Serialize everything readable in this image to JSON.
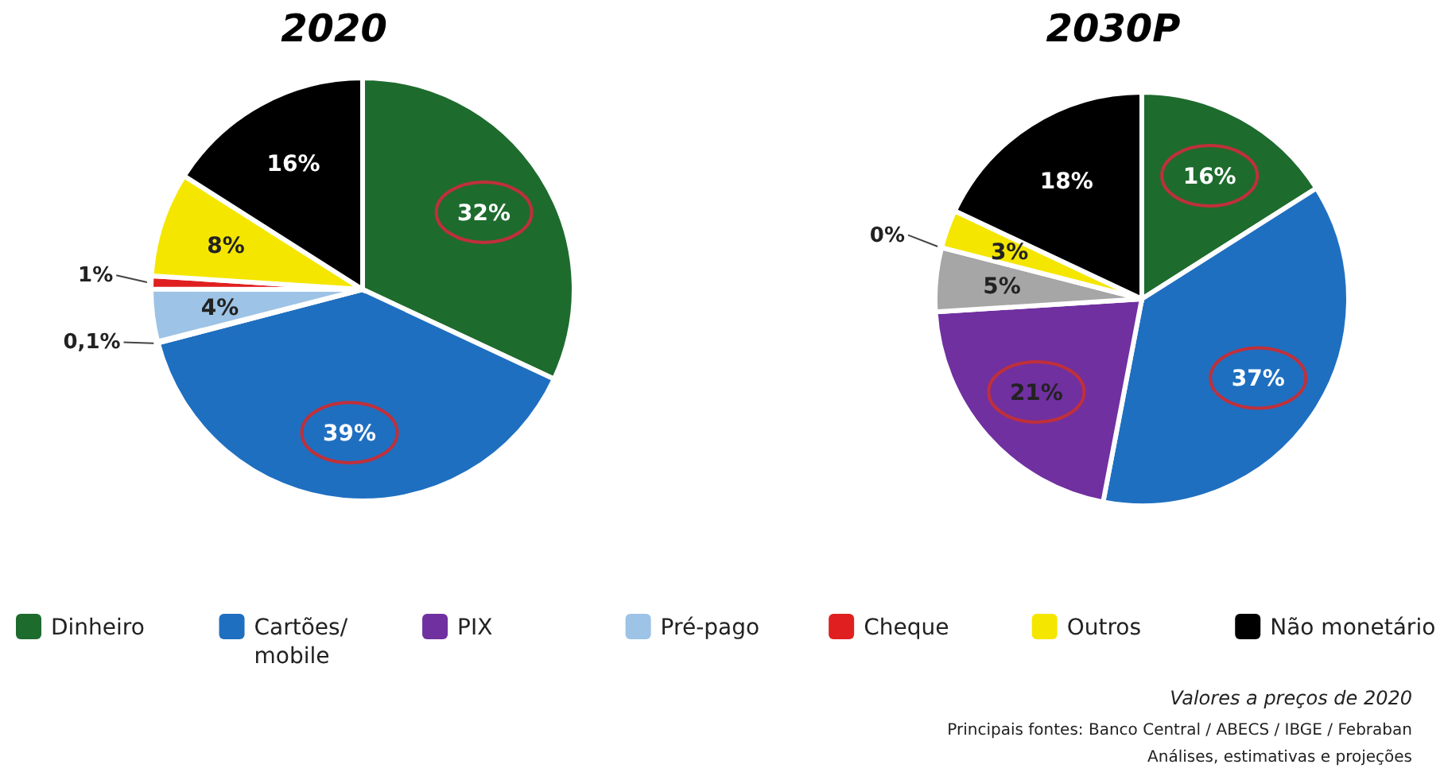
{
  "chart_data": {
    "type": "pie",
    "categories": [
      "Dinheiro",
      "Cartões/\nmobile",
      "PIX",
      "Pré-pago",
      "Cheque",
      "Outros",
      "Não monetário"
    ],
    "legend": "bottom",
    "series": [
      {
        "name": "2020",
        "values": [
          32,
          39,
          0.1,
          4,
          1,
          8,
          16
        ],
        "value_labels": [
          "32%",
          "39%",
          "0,1%",
          "4%",
          "1%",
          "8%",
          "16%"
        ],
        "colors": [
          "#1e6b2e",
          "#1f6fc0",
          "#7030a0",
          "#9dc3e6",
          "#e02020",
          "#f5e600",
          "#000000"
        ]
      },
      {
        "name": "2030P",
        "values": [
          16,
          37,
          21,
          5,
          0,
          3,
          18
        ],
        "value_labels": [
          "16%",
          "37%",
          "21%",
          "5%",
          "0%",
          "3%",
          "18%"
        ],
        "colors": [
          "#1e6b2e",
          "#1f6fc0",
          "#7030a0",
          "#a6a6a6",
          "#e02020",
          "#f5e600",
          "#000000"
        ]
      }
    ],
    "annotations": [
      "Valores a preços de 2020",
      "Principais fontes: Banco Central / ABECS / IBGE / Febraban",
      "Análises, estimativas e projeções"
    ]
  }
}
